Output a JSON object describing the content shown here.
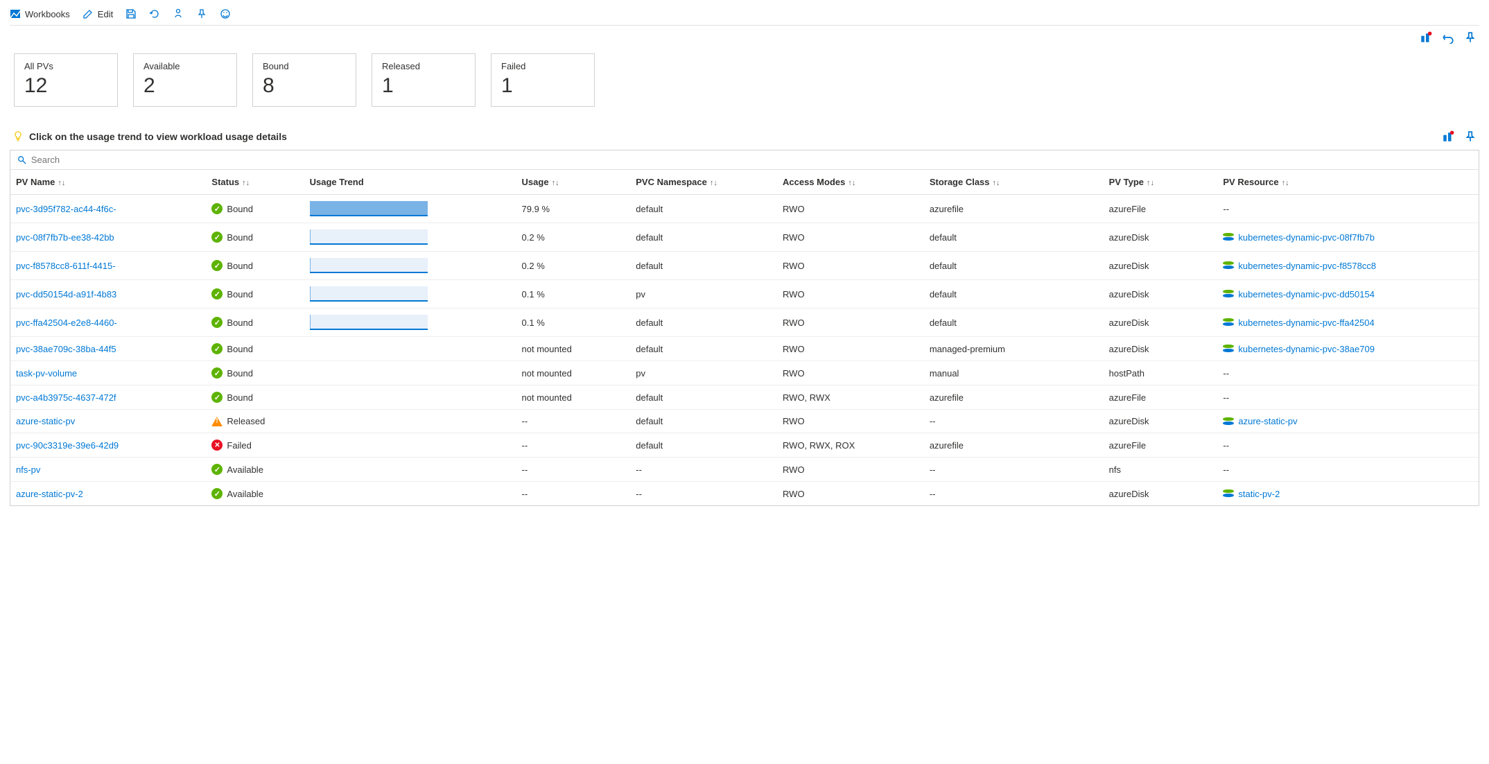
{
  "toolbar": {
    "workbooks": "Workbooks",
    "edit": "Edit"
  },
  "cards": [
    {
      "label": "All PVs",
      "value": "12"
    },
    {
      "label": "Available",
      "value": "2"
    },
    {
      "label": "Bound",
      "value": "8"
    },
    {
      "label": "Released",
      "value": "1"
    },
    {
      "label": "Failed",
      "value": "1"
    }
  ],
  "hint": "Click on the usage trend to view workload usage details",
  "search_placeholder": "Search",
  "columns": {
    "pvname": "PV Name",
    "status": "Status",
    "trend": "Usage Trend",
    "usage": "Usage",
    "ns": "PVC Namespace",
    "access": "Access Modes",
    "sc": "Storage Class",
    "type": "PV Type",
    "res": "PV Resource"
  },
  "rows": [
    {
      "name": "pvc-3d95f782-ac44-4f6c-",
      "status": "Bound",
      "s": "ok",
      "trend": 100,
      "usage": "79.9 %",
      "ns": "default",
      "access": "RWO",
      "sc": "azurefile",
      "type": "azureFile",
      "res": "--",
      "resLink": false
    },
    {
      "name": "pvc-08f7fb7b-ee38-42bb",
      "status": "Bound",
      "s": "ok",
      "trend": 0.3,
      "usage": "0.2 %",
      "ns": "default",
      "access": "RWO",
      "sc": "default",
      "type": "azureDisk",
      "res": "kubernetes-dynamic-pvc-08f7fb7b",
      "resLink": true
    },
    {
      "name": "pvc-f8578cc8-611f-4415-",
      "status": "Bound",
      "s": "ok",
      "trend": 0.3,
      "usage": "0.2 %",
      "ns": "default",
      "access": "RWO",
      "sc": "default",
      "type": "azureDisk",
      "res": "kubernetes-dynamic-pvc-f8578cc8",
      "resLink": true
    },
    {
      "name": "pvc-dd50154d-a91f-4b83",
      "status": "Bound",
      "s": "ok",
      "trend": 0.15,
      "usage": "0.1 %",
      "ns": "pv",
      "access": "RWO",
      "sc": "default",
      "type": "azureDisk",
      "res": "kubernetes-dynamic-pvc-dd50154",
      "resLink": true
    },
    {
      "name": "pvc-ffa42504-e2e8-4460-",
      "status": "Bound",
      "s": "ok",
      "trend": 0.15,
      "usage": "0.1 %",
      "ns": "default",
      "access": "RWO",
      "sc": "default",
      "type": "azureDisk",
      "res": "kubernetes-dynamic-pvc-ffa42504",
      "resLink": true
    },
    {
      "name": "pvc-38ae709c-38ba-44f5",
      "status": "Bound",
      "s": "ok",
      "trend": null,
      "usage": "not mounted",
      "ns": "default",
      "access": "RWO",
      "sc": "managed-premium",
      "type": "azureDisk",
      "res": "kubernetes-dynamic-pvc-38ae709",
      "resLink": true
    },
    {
      "name": "task-pv-volume",
      "status": "Bound",
      "s": "ok",
      "trend": null,
      "usage": "not mounted",
      "ns": "pv",
      "access": "RWO",
      "sc": "manual",
      "type": "hostPath",
      "res": "--",
      "resLink": false
    },
    {
      "name": "pvc-a4b3975c-4637-472f",
      "status": "Bound",
      "s": "ok",
      "trend": null,
      "usage": "not mounted",
      "ns": "default",
      "access": "RWO, RWX",
      "sc": "azurefile",
      "type": "azureFile",
      "res": "--",
      "resLink": false
    },
    {
      "name": "azure-static-pv",
      "status": "Released",
      "s": "warn",
      "trend": null,
      "usage": "--",
      "ns": "default",
      "access": "RWO",
      "sc": "--",
      "type": "azureDisk",
      "res": "azure-static-pv",
      "resLink": true
    },
    {
      "name": "pvc-90c3319e-39e6-42d9",
      "status": "Failed",
      "s": "fail",
      "trend": null,
      "usage": "--",
      "ns": "default",
      "access": "RWO, RWX, ROX",
      "sc": "azurefile",
      "type": "azureFile",
      "res": "--",
      "resLink": false
    },
    {
      "name": "nfs-pv",
      "status": "Available",
      "s": "ok",
      "trend": null,
      "usage": "--",
      "ns": "--",
      "access": "RWO",
      "sc": "--",
      "type": "nfs",
      "res": "--",
      "resLink": false
    },
    {
      "name": "azure-static-pv-2",
      "status": "Available",
      "s": "ok",
      "trend": null,
      "usage": "--",
      "ns": "--",
      "access": "RWO",
      "sc": "--",
      "type": "azureDisk",
      "res": "static-pv-2",
      "resLink": true
    }
  ],
  "colors": {
    "link": "#0078d4",
    "ok": "#5db300",
    "warn": "#ff8c00",
    "fail": "#e81123",
    "barFill": "#7ab3e6",
    "barTrack": "#e8f0fa"
  }
}
